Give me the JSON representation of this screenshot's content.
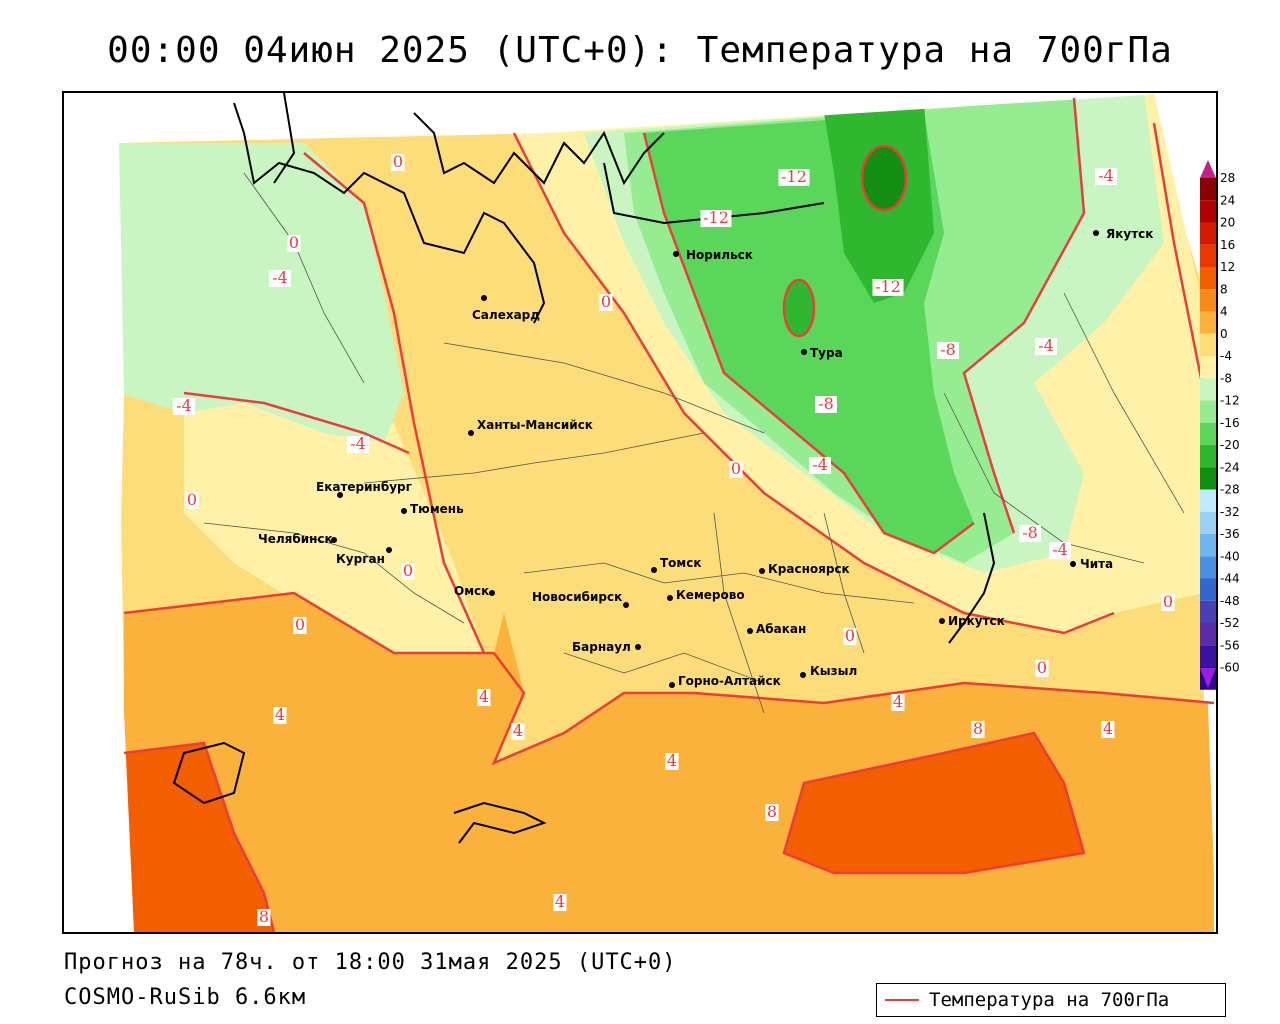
{
  "title": "00:00 04июн 2025 (UTC+0): Температура на 700гПа",
  "footer": {
    "forecast": "Прогноз на 78ч. от 18:00 31мая 2025 (UTC+0)",
    "model": "COSMO-RuSib 6.6км"
  },
  "legend": {
    "label": "Температура на 700гПа",
    "line_color": "#ee3b3b"
  },
  "colorbar": {
    "ticks": [
      "28",
      "24",
      "20",
      "16",
      "12",
      "8",
      "4",
      "0",
      "-4",
      "-8",
      "-12",
      "-16",
      "-20",
      "-24",
      "-28",
      "-32",
      "-36",
      "-40",
      "-44",
      "-48",
      "-52",
      "-56",
      "-60"
    ],
    "colors": [
      "#8b0000",
      "#b00000",
      "#d41a00",
      "#e83a00",
      "#f25e00",
      "#f88a1a",
      "#fbb23c",
      "#fddc7a",
      "#fff2a8",
      "#c9f5c2",
      "#96ec90",
      "#5ad65a",
      "#2fb82f",
      "#128f12",
      "#bfeaff",
      "#9bd3f7",
      "#6fb6ef",
      "#4a8fe0",
      "#3366cc",
      "#4b3fb5",
      "#5a2ca8",
      "#3a12a0",
      "#2a0a8a"
    ],
    "top_arrow_color": "#c0208a",
    "bottom_arrow_color": "#9a1ee0"
  },
  "cities": [
    {
      "name": "Норильск"
    },
    {
      "name": "Якутск"
    },
    {
      "name": "Салехард"
    },
    {
      "name": "Тура"
    },
    {
      "name": "Ханты-Мансийск"
    },
    {
      "name": "Екатеринбург"
    },
    {
      "name": "Тюмень"
    },
    {
      "name": "Челябинск"
    },
    {
      "name": "Курган"
    },
    {
      "name": "Омск"
    },
    {
      "name": "Томск"
    },
    {
      "name": "Красноярск"
    },
    {
      "name": "Новосибирск"
    },
    {
      "name": "Кемерово"
    },
    {
      "name": "Абакан"
    },
    {
      "name": "Иркутск"
    },
    {
      "name": "Чита"
    },
    {
      "name": "Барнаул"
    },
    {
      "name": "Горно-Алтайск"
    },
    {
      "name": "Кызыл"
    }
  ],
  "contour_labels": [
    "0",
    "0",
    "-4",
    "0",
    "-12",
    "-12",
    "-12",
    "-4",
    "-4",
    "-4",
    "-4",
    "-8",
    "-8",
    "0",
    "-4",
    "-8",
    "-4",
    "0",
    "0",
    "0",
    "0",
    "0",
    "0",
    "4",
    "4",
    "4",
    "4",
    "4",
    "4",
    "8",
    "8",
    "8",
    "4"
  ]
}
